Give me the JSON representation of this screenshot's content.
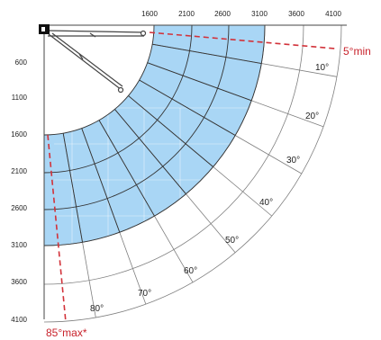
{
  "diagram": {
    "x_axis": {
      "ticks": [
        "1600",
        "2100",
        "2600",
        "3100",
        "3600",
        "4100"
      ]
    },
    "y_axis": {
      "ticks": [
        "600",
        "1100",
        "1600",
        "2100",
        "2600",
        "3100",
        "3600",
        "4100"
      ]
    },
    "angle_labels": [
      "10°",
      "20°",
      "30°",
      "40°",
      "50°",
      "60°",
      "70°",
      "80°"
    ],
    "min_label": "5°min",
    "max_label": "85°max*",
    "colors": {
      "band": "#a9d6f5",
      "limit": "#d2323a",
      "grid": "#7f7f7f"
    },
    "icons": [
      "wall-bracket-icon",
      "awning-arm-icon"
    ]
  }
}
